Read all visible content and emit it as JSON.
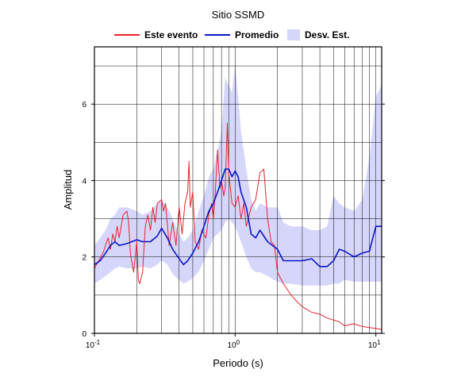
{
  "chart_data": {
    "type": "line",
    "title": "Sitio SSMD",
    "xlabel": "Periodo (s)",
    "ylabel": "Amplitud",
    "x_scale": "log",
    "xlim": [
      0.1,
      11
    ],
    "ylim": [
      0,
      7.5
    ],
    "grid": true,
    "legend_position": "top",
    "x_ticks": [
      {
        "base": "10",
        "exp": "-1"
      },
      {
        "base": "10",
        "exp": "0"
      },
      {
        "base": "10",
        "exp": "1"
      }
    ],
    "y_ticks": [
      "0",
      "2",
      "4",
      "6"
    ],
    "series": [
      {
        "name": "Este evento",
        "color": "#e8232a",
        "x": [
          0.1,
          0.107,
          0.115,
          0.125,
          0.13,
          0.135,
          0.14,
          0.145,
          0.15,
          0.16,
          0.17,
          0.175,
          0.18,
          0.19,
          0.2,
          0.205,
          0.21,
          0.22,
          0.23,
          0.24,
          0.25,
          0.26,
          0.27,
          0.28,
          0.3,
          0.31,
          0.32,
          0.34,
          0.36,
          0.38,
          0.4,
          0.42,
          0.44,
          0.46,
          0.47,
          0.48,
          0.5,
          0.52,
          0.55,
          0.58,
          0.62,
          0.65,
          0.68,
          0.7,
          0.72,
          0.75,
          0.78,
          0.8,
          0.83,
          0.85,
          0.88,
          0.9,
          0.95,
          1.0,
          1.05,
          1.1,
          1.15,
          1.2,
          1.3,
          1.4,
          1.5,
          1.6,
          1.7,
          1.8,
          1.9,
          2.0,
          2.2,
          2.5,
          2.8,
          3.0,
          3.5,
          4.0,
          4.5,
          5.0,
          5.5,
          6.0,
          7.0,
          8.0,
          9.0,
          10.0,
          11.0
        ],
        "y": [
          1.7,
          1.9,
          2.1,
          2.5,
          2.2,
          2.6,
          2.4,
          2.8,
          2.5,
          3.1,
          3.2,
          2.9,
          2.1,
          1.6,
          2.4,
          1.4,
          1.3,
          1.6,
          2.8,
          3.1,
          2.7,
          3.3,
          2.9,
          3.4,
          3.5,
          3.2,
          3.4,
          2.3,
          2.9,
          2.3,
          3.3,
          2.6,
          3.4,
          3.7,
          4.5,
          3.3,
          3.7,
          2.4,
          2.2,
          2.7,
          2.5,
          3.1,
          3.4,
          3.0,
          3.6,
          4.8,
          3.8,
          4.0,
          3.6,
          3.8,
          5.5,
          4.2,
          3.4,
          3.3,
          3.6,
          3.0,
          3.4,
          2.8,
          3.3,
          3.5,
          4.2,
          4.3,
          3.0,
          2.4,
          2.3,
          1.6,
          1.3,
          1.0,
          0.8,
          0.7,
          0.55,
          0.5,
          0.4,
          0.35,
          0.3,
          0.2,
          0.25,
          0.18,
          0.15,
          0.13,
          0.1
        ]
      },
      {
        "name": "Promedio",
        "color": "#0a14c8",
        "x": [
          0.1,
          0.11,
          0.12,
          0.13,
          0.14,
          0.15,
          0.17,
          0.2,
          0.22,
          0.25,
          0.28,
          0.3,
          0.33,
          0.36,
          0.4,
          0.43,
          0.46,
          0.5,
          0.55,
          0.6,
          0.65,
          0.7,
          0.75,
          0.8,
          0.85,
          0.9,
          0.95,
          1.0,
          1.05,
          1.1,
          1.2,
          1.3,
          1.4,
          1.5,
          1.7,
          2.0,
          2.2,
          2.5,
          3.0,
          3.5,
          4.0,
          4.5,
          5.0,
          5.5,
          6.0,
          7.0,
          8.0,
          9.0,
          10.0,
          11.0
        ],
        "y": [
          1.8,
          1.9,
          2.1,
          2.3,
          2.4,
          2.3,
          2.35,
          2.45,
          2.4,
          2.4,
          2.55,
          2.75,
          2.5,
          2.2,
          1.95,
          1.8,
          1.9,
          2.1,
          2.4,
          2.8,
          3.2,
          3.4,
          3.7,
          4.0,
          4.3,
          4.3,
          4.1,
          4.25,
          4.1,
          3.7,
          3.3,
          2.6,
          2.5,
          2.7,
          2.4,
          2.2,
          1.9,
          1.9,
          1.9,
          1.95,
          1.75,
          1.75,
          1.9,
          2.2,
          2.15,
          2.0,
          2.1,
          2.15,
          2.8,
          2.8
        ]
      }
    ],
    "band": {
      "name": "Desv. Est.",
      "color": "#d6d6fb",
      "x": [
        0.1,
        0.11,
        0.12,
        0.13,
        0.14,
        0.15,
        0.17,
        0.2,
        0.22,
        0.25,
        0.28,
        0.3,
        0.33,
        0.36,
        0.4,
        0.43,
        0.46,
        0.5,
        0.55,
        0.6,
        0.65,
        0.7,
        0.75,
        0.8,
        0.85,
        0.9,
        0.95,
        1.0,
        1.05,
        1.1,
        1.2,
        1.3,
        1.4,
        1.5,
        1.7,
        2.0,
        2.2,
        2.5,
        3.0,
        3.5,
        4.0,
        4.5,
        5.0,
        5.5,
        6.0,
        7.0,
        8.0,
        9.0,
        10.0,
        11.0
      ],
      "lower": [
        1.3,
        1.4,
        1.5,
        1.6,
        1.7,
        1.75,
        1.7,
        1.7,
        1.75,
        1.7,
        1.8,
        1.9,
        1.8,
        1.55,
        1.4,
        1.3,
        1.35,
        1.45,
        1.6,
        1.9,
        2.2,
        2.5,
        2.6,
        2.7,
        2.9,
        3.0,
        2.9,
        2.8,
        2.6,
        2.4,
        2.0,
        1.7,
        1.6,
        1.6,
        1.5,
        1.35,
        1.3,
        1.3,
        1.25,
        1.25,
        1.25,
        1.25,
        1.3,
        1.3,
        1.4,
        1.35,
        1.35,
        1.35,
        1.35,
        1.35
      ],
      "upper": [
        2.3,
        2.5,
        2.7,
        3.0,
        3.1,
        3.3,
        3.3,
        3.2,
        3.1,
        3.2,
        3.4,
        3.5,
        3.3,
        3.0,
        2.6,
        2.4,
        2.5,
        2.7,
        3.2,
        3.6,
        4.1,
        4.3,
        4.8,
        5.3,
        6.7,
        6.5,
        6.3,
        7.1,
        6.2,
        5.3,
        4.3,
        3.5,
        3.2,
        3.4,
        3.3,
        3.3,
        2.9,
        2.8,
        2.8,
        2.7,
        2.7,
        2.8,
        3.6,
        3.4,
        3.3,
        3.2,
        3.5,
        4.6,
        6.2,
        6.5
      ]
    }
  }
}
